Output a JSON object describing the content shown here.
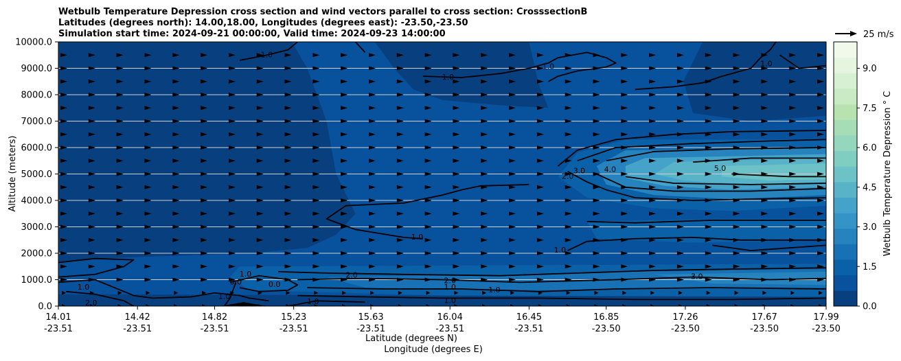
{
  "chart_data": {
    "type": "heatmap",
    "title_lines": [
      "Wetbulb Temperature Depression cross section and wind vectors parallel to cross section: CrosssectionB",
      "Latitudes (degrees north): 14.00,18.00, Longitudes (degrees east): -23.50,-23.50",
      "Simulation start time: 2024-09-21 00:00:00, Valid time: 2024-09-23 14:00:00"
    ],
    "ylabel": "Altitude (meters)",
    "xlabel_lines": [
      "Latitude (degrees N)",
      "Longitude (degrees E)"
    ],
    "ylim": [
      0,
      10000
    ],
    "y_ticks": [
      "0.0",
      "1000.0",
      "2000.0",
      "3000.0",
      "4000.0",
      "5000.0",
      "6000.0",
      "7000.0",
      "8000.0",
      "9000.0",
      "10000.0"
    ],
    "y_tick_values": [
      0,
      1000,
      2000,
      3000,
      4000,
      5000,
      6000,
      7000,
      8000,
      9000,
      10000
    ],
    "xlim": [
      14.01,
      17.99
    ],
    "x_ticks": [
      {
        "lat": "14.01",
        "lon": "-23.51",
        "value": 14.01
      },
      {
        "lat": "14.42",
        "lon": "-23.51",
        "value": 14.42
      },
      {
        "lat": "14.82",
        "lon": "-23.51",
        "value": 14.82
      },
      {
        "lat": "15.23",
        "lon": "-23.51",
        "value": 15.23
      },
      {
        "lat": "15.63",
        "lon": "-23.51",
        "value": 15.63
      },
      {
        "lat": "16.04",
        "lon": "-23.51",
        "value": 16.04
      },
      {
        "lat": "16.45",
        "lon": "-23.51",
        "value": 16.45
      },
      {
        "lat": "16.85",
        "lon": "-23.50",
        "value": 16.85
      },
      {
        "lat": "17.26",
        "lon": "-23.50",
        "value": 17.26
      },
      {
        "lat": "17.67",
        "lon": "-23.50",
        "value": 17.67
      },
      {
        "lat": "17.99",
        "lon": "-23.50",
        "value": 17.99
      }
    ],
    "grid": "horizontal",
    "colorbar": {
      "label": "Wetbulb Temperature Depression $^\\circ$C",
      "label_text": "Wetbulb Temperature Depression ° C",
      "range": [
        0,
        10
      ],
      "ticks": [
        "0.0",
        "1.5",
        "3.0",
        "4.5",
        "6.0",
        "7.5",
        "9.0"
      ],
      "tick_values": [
        0,
        1.5,
        3,
        4.5,
        6,
        7.5,
        9
      ],
      "colors": [
        "#08407f",
        "#08519c",
        "#0b61a8",
        "#1771b4",
        "#2683bd",
        "#3594c7",
        "#45a3ca",
        "#58b3c9",
        "#6cc2c6",
        "#80cdc1",
        "#95d6bf",
        "#a7ddb5",
        "#b8e3b0",
        "#c9eac2",
        "#d8f0d2",
        "#e5f5e0",
        "#f0f9ea"
      ]
    },
    "quiver_key": {
      "label": "25 m/s",
      "value": 25
    },
    "contour_labels": [
      {
        "text": "1.0",
        "x": 15.09,
        "y": 9500
      },
      {
        "text": "1.0",
        "x": 16.03,
        "y": 8650
      },
      {
        "text": "1.0",
        "x": 16.55,
        "y": 9050
      },
      {
        "text": "1.0",
        "x": 17.68,
        "y": 9150
      },
      {
        "text": "2.0",
        "x": 16.65,
        "y": 4900
      },
      {
        "text": "3.0",
        "x": 16.71,
        "y": 5100
      },
      {
        "text": "4.0",
        "x": 16.87,
        "y": 5150
      },
      {
        "text": "5.0",
        "x": 17.44,
        "y": 5200
      },
      {
        "text": "1.0",
        "x": 15.87,
        "y": 2600
      },
      {
        "text": "1.0",
        "x": 16.61,
        "y": 2100
      },
      {
        "text": "3.0",
        "x": 17.32,
        "y": 1100
      },
      {
        "text": "1.0",
        "x": 14.98,
        "y": 1200
      },
      {
        "text": "0.0",
        "x": 15.13,
        "y": 800
      },
      {
        "text": "2.0",
        "x": 15.53,
        "y": 1150
      },
      {
        "text": "2.0",
        "x": 16.04,
        "y": 950
      },
      {
        "text": "1.0",
        "x": 16.04,
        "y": 700
      },
      {
        "text": "1.0",
        "x": 16.27,
        "y": 600
      },
      {
        "text": "1.0",
        "x": 16.04,
        "y": 200
      },
      {
        "text": "1.0",
        "x": 15.33,
        "y": 150
      },
      {
        "text": "1.0",
        "x": 14.14,
        "y": 700
      },
      {
        "text": "2.0",
        "x": 14.18,
        "y": 100
      },
      {
        "text": "0.0",
        "x": 14.93,
        "y": 900
      },
      {
        "text": "1.0",
        "x": 14.87,
        "y": 350
      }
    ],
    "fill_regions": [
      {
        "level": 1,
        "points": [
          [
            14.01,
            10000
          ],
          [
            17.99,
            10000
          ],
          [
            17.99,
            0
          ],
          [
            14.01,
            0
          ]
        ]
      },
      {
        "level": 0,
        "points": [
          [
            14.01,
            10000
          ],
          [
            15.22,
            10000
          ],
          [
            15.3,
            9000
          ],
          [
            15.4,
            7000
          ],
          [
            15.45,
            5000
          ],
          [
            15.55,
            3500
          ],
          [
            15.45,
            2700
          ],
          [
            15.3,
            2200
          ],
          [
            15.0,
            2000
          ],
          [
            14.6,
            1900
          ],
          [
            14.2,
            1800
          ],
          [
            14.01,
            1650
          ]
        ]
      },
      {
        "level": 0,
        "points": [
          [
            15.65,
            10000
          ],
          [
            16.45,
            10000
          ],
          [
            16.5,
            8400
          ],
          [
            16.55,
            7500
          ],
          [
            16.3,
            7600
          ],
          [
            16.0,
            7800
          ],
          [
            15.85,
            8200
          ],
          [
            15.75,
            9000
          ]
        ]
      },
      {
        "level": 0,
        "points": [
          [
            17.35,
            10000
          ],
          [
            17.99,
            10000
          ],
          [
            17.99,
            7200
          ],
          [
            17.6,
            7000
          ],
          [
            17.3,
            7300
          ],
          [
            17.25,
            8500
          ]
        ]
      },
      {
        "level": 2,
        "points": [
          [
            16.95,
            6300
          ],
          [
            17.99,
            6300
          ],
          [
            17.99,
            3800
          ],
          [
            17.5,
            3600
          ],
          [
            17.1,
            3700
          ],
          [
            16.75,
            4100
          ],
          [
            16.6,
            4900
          ],
          [
            16.7,
            5800
          ]
        ]
      },
      {
        "level": 4,
        "points": [
          [
            16.95,
            5900
          ],
          [
            17.99,
            6000
          ],
          [
            17.99,
            4200
          ],
          [
            17.5,
            4050
          ],
          [
            17.1,
            4200
          ],
          [
            16.85,
            4600
          ],
          [
            16.8,
            5300
          ]
        ]
      },
      {
        "level": 6,
        "points": [
          [
            17.05,
            5600
          ],
          [
            17.99,
            5750
          ],
          [
            17.99,
            4500
          ],
          [
            17.5,
            4400
          ],
          [
            17.15,
            4550
          ],
          [
            16.95,
            4850
          ],
          [
            16.95,
            5300
          ]
        ]
      },
      {
        "level": 7,
        "points": [
          [
            17.2,
            5450
          ],
          [
            17.99,
            5600
          ],
          [
            17.99,
            4700
          ],
          [
            17.6,
            4600
          ],
          [
            17.25,
            4750
          ],
          [
            17.1,
            5000
          ]
        ]
      },
      {
        "level": 8,
        "points": [
          [
            17.45,
            5300
          ],
          [
            17.99,
            5400
          ],
          [
            17.99,
            4800
          ],
          [
            17.7,
            4750
          ],
          [
            17.45,
            4900
          ]
        ]
      },
      {
        "level": 2,
        "points": [
          [
            14.95,
            1500
          ],
          [
            17.99,
            1600
          ],
          [
            17.99,
            300
          ],
          [
            16.0,
            400
          ],
          [
            15.0,
            600
          ],
          [
            14.9,
            1100
          ]
        ]
      },
      {
        "level": 3,
        "points": [
          [
            15.4,
            1100
          ],
          [
            16.4,
            1200
          ],
          [
            17.0,
            1300
          ],
          [
            17.99,
            1400
          ],
          [
            17.99,
            700
          ],
          [
            16.5,
            600
          ],
          [
            15.6,
            700
          ]
        ]
      },
      {
        "level": 4,
        "points": [
          [
            17.1,
            1200
          ],
          [
            17.99,
            1300
          ],
          [
            17.99,
            800
          ],
          [
            17.4,
            850
          ]
        ]
      },
      {
        "level": 2,
        "points": [
          [
            16.75,
            3200
          ],
          [
            17.5,
            3300
          ],
          [
            17.99,
            3300
          ],
          [
            17.99,
            2500
          ],
          [
            17.3,
            2400
          ],
          [
            16.8,
            2550
          ]
        ]
      },
      {
        "level": 0,
        "points": [
          [
            14.01,
            450
          ],
          [
            17.99,
            350
          ],
          [
            17.99,
            0
          ],
          [
            14.01,
            0
          ]
        ]
      }
    ],
    "contour_lines": [
      [
        [
          15.25,
          10000
        ],
        [
          15.2,
          9700
        ],
        [
          15.09,
          9500
        ],
        [
          14.95,
          9300
        ]
      ],
      [
        [
          15.55,
          10000
        ],
        [
          15.6,
          9600
        ]
      ],
      [
        [
          15.9,
          8700
        ],
        [
          16.1,
          8650
        ],
        [
          16.3,
          8800
        ],
        [
          16.45,
          9000
        ],
        [
          16.55,
          9200
        ],
        [
          16.6,
          9400
        ],
        [
          16.75,
          9600
        ],
        [
          16.85,
          9400
        ],
        [
          16.9,
          9200
        ],
        [
          16.85,
          9050
        ],
        [
          16.7,
          8900
        ],
        [
          16.6,
          8700
        ],
        [
          16.55,
          8500
        ]
      ],
      [
        [
          17.0,
          8200
        ],
        [
          17.2,
          8300
        ],
        [
          17.35,
          8450
        ],
        [
          17.45,
          8700
        ],
        [
          17.6,
          9000
        ],
        [
          17.65,
          9400
        ],
        [
          17.7,
          9700
        ],
        [
          17.73,
          10000
        ]
      ],
      [
        [
          17.75,
          9500
        ],
        [
          17.85,
          9000
        ],
        [
          17.99,
          9100
        ]
      ],
      [
        [
          16.6,
          5300
        ],
        [
          16.7,
          5900
        ],
        [
          16.9,
          6300
        ],
        [
          17.2,
          6500
        ],
        [
          17.5,
          6600
        ],
        [
          17.99,
          6650
        ]
      ],
      [
        [
          16.45,
          4600
        ],
        [
          16.2,
          4550
        ],
        [
          16.1,
          4400
        ],
        [
          16.0,
          4200
        ],
        [
          15.8,
          3900
        ],
        [
          15.5,
          3800
        ],
        [
          15.4,
          3300
        ],
        [
          15.55,
          2900
        ],
        [
          15.8,
          2600
        ],
        [
          15.9,
          2550
        ]
      ],
      [
        [
          16.65,
          5100
        ],
        [
          16.75,
          4700
        ],
        [
          16.85,
          4400
        ],
        [
          17.0,
          4100
        ],
        [
          17.3,
          4000
        ],
        [
          17.6,
          4050
        ],
        [
          17.99,
          4100
        ]
      ],
      [
        [
          16.7,
          5500
        ],
        [
          16.9,
          6000
        ],
        [
          17.3,
          6150
        ],
        [
          17.7,
          6250
        ],
        [
          17.99,
          6300
        ]
      ],
      [
        [
          16.8,
          5000
        ],
        [
          16.95,
          4500
        ],
        [
          17.2,
          4350
        ],
        [
          17.6,
          4350
        ],
        [
          17.99,
          4450
        ]
      ],
      [
        [
          16.85,
          5500
        ],
        [
          17.1,
          5850
        ],
        [
          17.5,
          5950
        ],
        [
          17.99,
          6000
        ]
      ],
      [
        [
          16.95,
          4900
        ],
        [
          17.2,
          4650
        ],
        [
          17.6,
          4600
        ],
        [
          17.99,
          4650
        ]
      ],
      [
        [
          17.3,
          5450
        ],
        [
          17.6,
          5600
        ],
        [
          17.99,
          5600
        ]
      ],
      [
        [
          17.5,
          5000
        ],
        [
          17.8,
          4900
        ],
        [
          17.99,
          4900
        ]
      ],
      [
        [
          16.65,
          2100
        ],
        [
          16.75,
          2450
        ],
        [
          17.0,
          2550
        ],
        [
          17.3,
          2600
        ],
        [
          17.55,
          2500
        ],
        [
          17.99,
          2500
        ]
      ],
      [
        [
          16.75,
          3200
        ],
        [
          17.0,
          3150
        ],
        [
          17.4,
          3250
        ],
        [
          17.99,
          3250
        ]
      ],
      [
        [
          17.99,
          2300
        ],
        [
          17.6,
          2100
        ],
        [
          17.4,
          2300
        ]
      ],
      [
        [
          14.01,
          1650
        ],
        [
          14.2,
          1800
        ],
        [
          14.4,
          1750
        ],
        [
          14.35,
          1500
        ],
        [
          14.2,
          1200
        ],
        [
          14.01,
          1100
        ]
      ],
      [
        [
          14.01,
          900
        ],
        [
          14.2,
          1000
        ],
        [
          14.3,
          700
        ],
        [
          14.4,
          400
        ],
        [
          14.5,
          300
        ],
        [
          14.7,
          350
        ],
        [
          14.82,
          500
        ],
        [
          14.95,
          400
        ],
        [
          15.0,
          300
        ],
        [
          15.1,
          200
        ]
      ],
      [
        [
          14.4,
          0
        ],
        [
          14.35,
          200
        ],
        [
          14.2,
          450
        ],
        [
          14.05,
          550
        ]
      ],
      [
        [
          14.9,
          900
        ],
        [
          15.05,
          1150
        ],
        [
          15.2,
          1000
        ],
        [
          15.25,
          800
        ],
        [
          15.2,
          600
        ],
        [
          15.05,
          550
        ],
        [
          14.95,
          700
        ]
      ],
      [
        [
          15.15,
          1300
        ],
        [
          15.4,
          1250
        ],
        [
          15.8,
          1200
        ],
        [
          16.3,
          1150
        ],
        [
          16.7,
          1250
        ],
        [
          17.1,
          1350
        ],
        [
          17.5,
          1400
        ],
        [
          17.99,
          1450
        ]
      ],
      [
        [
          15.25,
          1000
        ],
        [
          15.6,
          1050
        ],
        [
          16.0,
          1000
        ],
        [
          16.4,
          900
        ],
        [
          16.9,
          1000
        ],
        [
          17.3,
          1100
        ],
        [
          17.7,
          1000
        ],
        [
          17.99,
          1050
        ]
      ],
      [
        [
          15.3,
          700
        ],
        [
          15.7,
          650
        ],
        [
          16.1,
          650
        ],
        [
          16.5,
          550
        ],
        [
          16.9,
          650
        ],
        [
          17.4,
          700
        ],
        [
          17.99,
          650
        ]
      ],
      [
        [
          15.25,
          400
        ],
        [
          15.6,
          350
        ],
        [
          16.0,
          300
        ],
        [
          16.5,
          300
        ],
        [
          17.0,
          250
        ],
        [
          17.5,
          250
        ],
        [
          17.99,
          300
        ]
      ],
      [
        [
          15.2,
          0
        ],
        [
          15.35,
          200
        ],
        [
          15.6,
          150
        ]
      ],
      [
        [
          14.87,
          0
        ],
        [
          14.9,
          300
        ],
        [
          14.93,
          900
        ]
      ]
    ],
    "terrain": {
      "points": [
        [
          14.85,
          0
        ],
        [
          14.97,
          150
        ],
        [
          15.05,
          50
        ],
        [
          15.1,
          0
        ]
      ]
    }
  }
}
